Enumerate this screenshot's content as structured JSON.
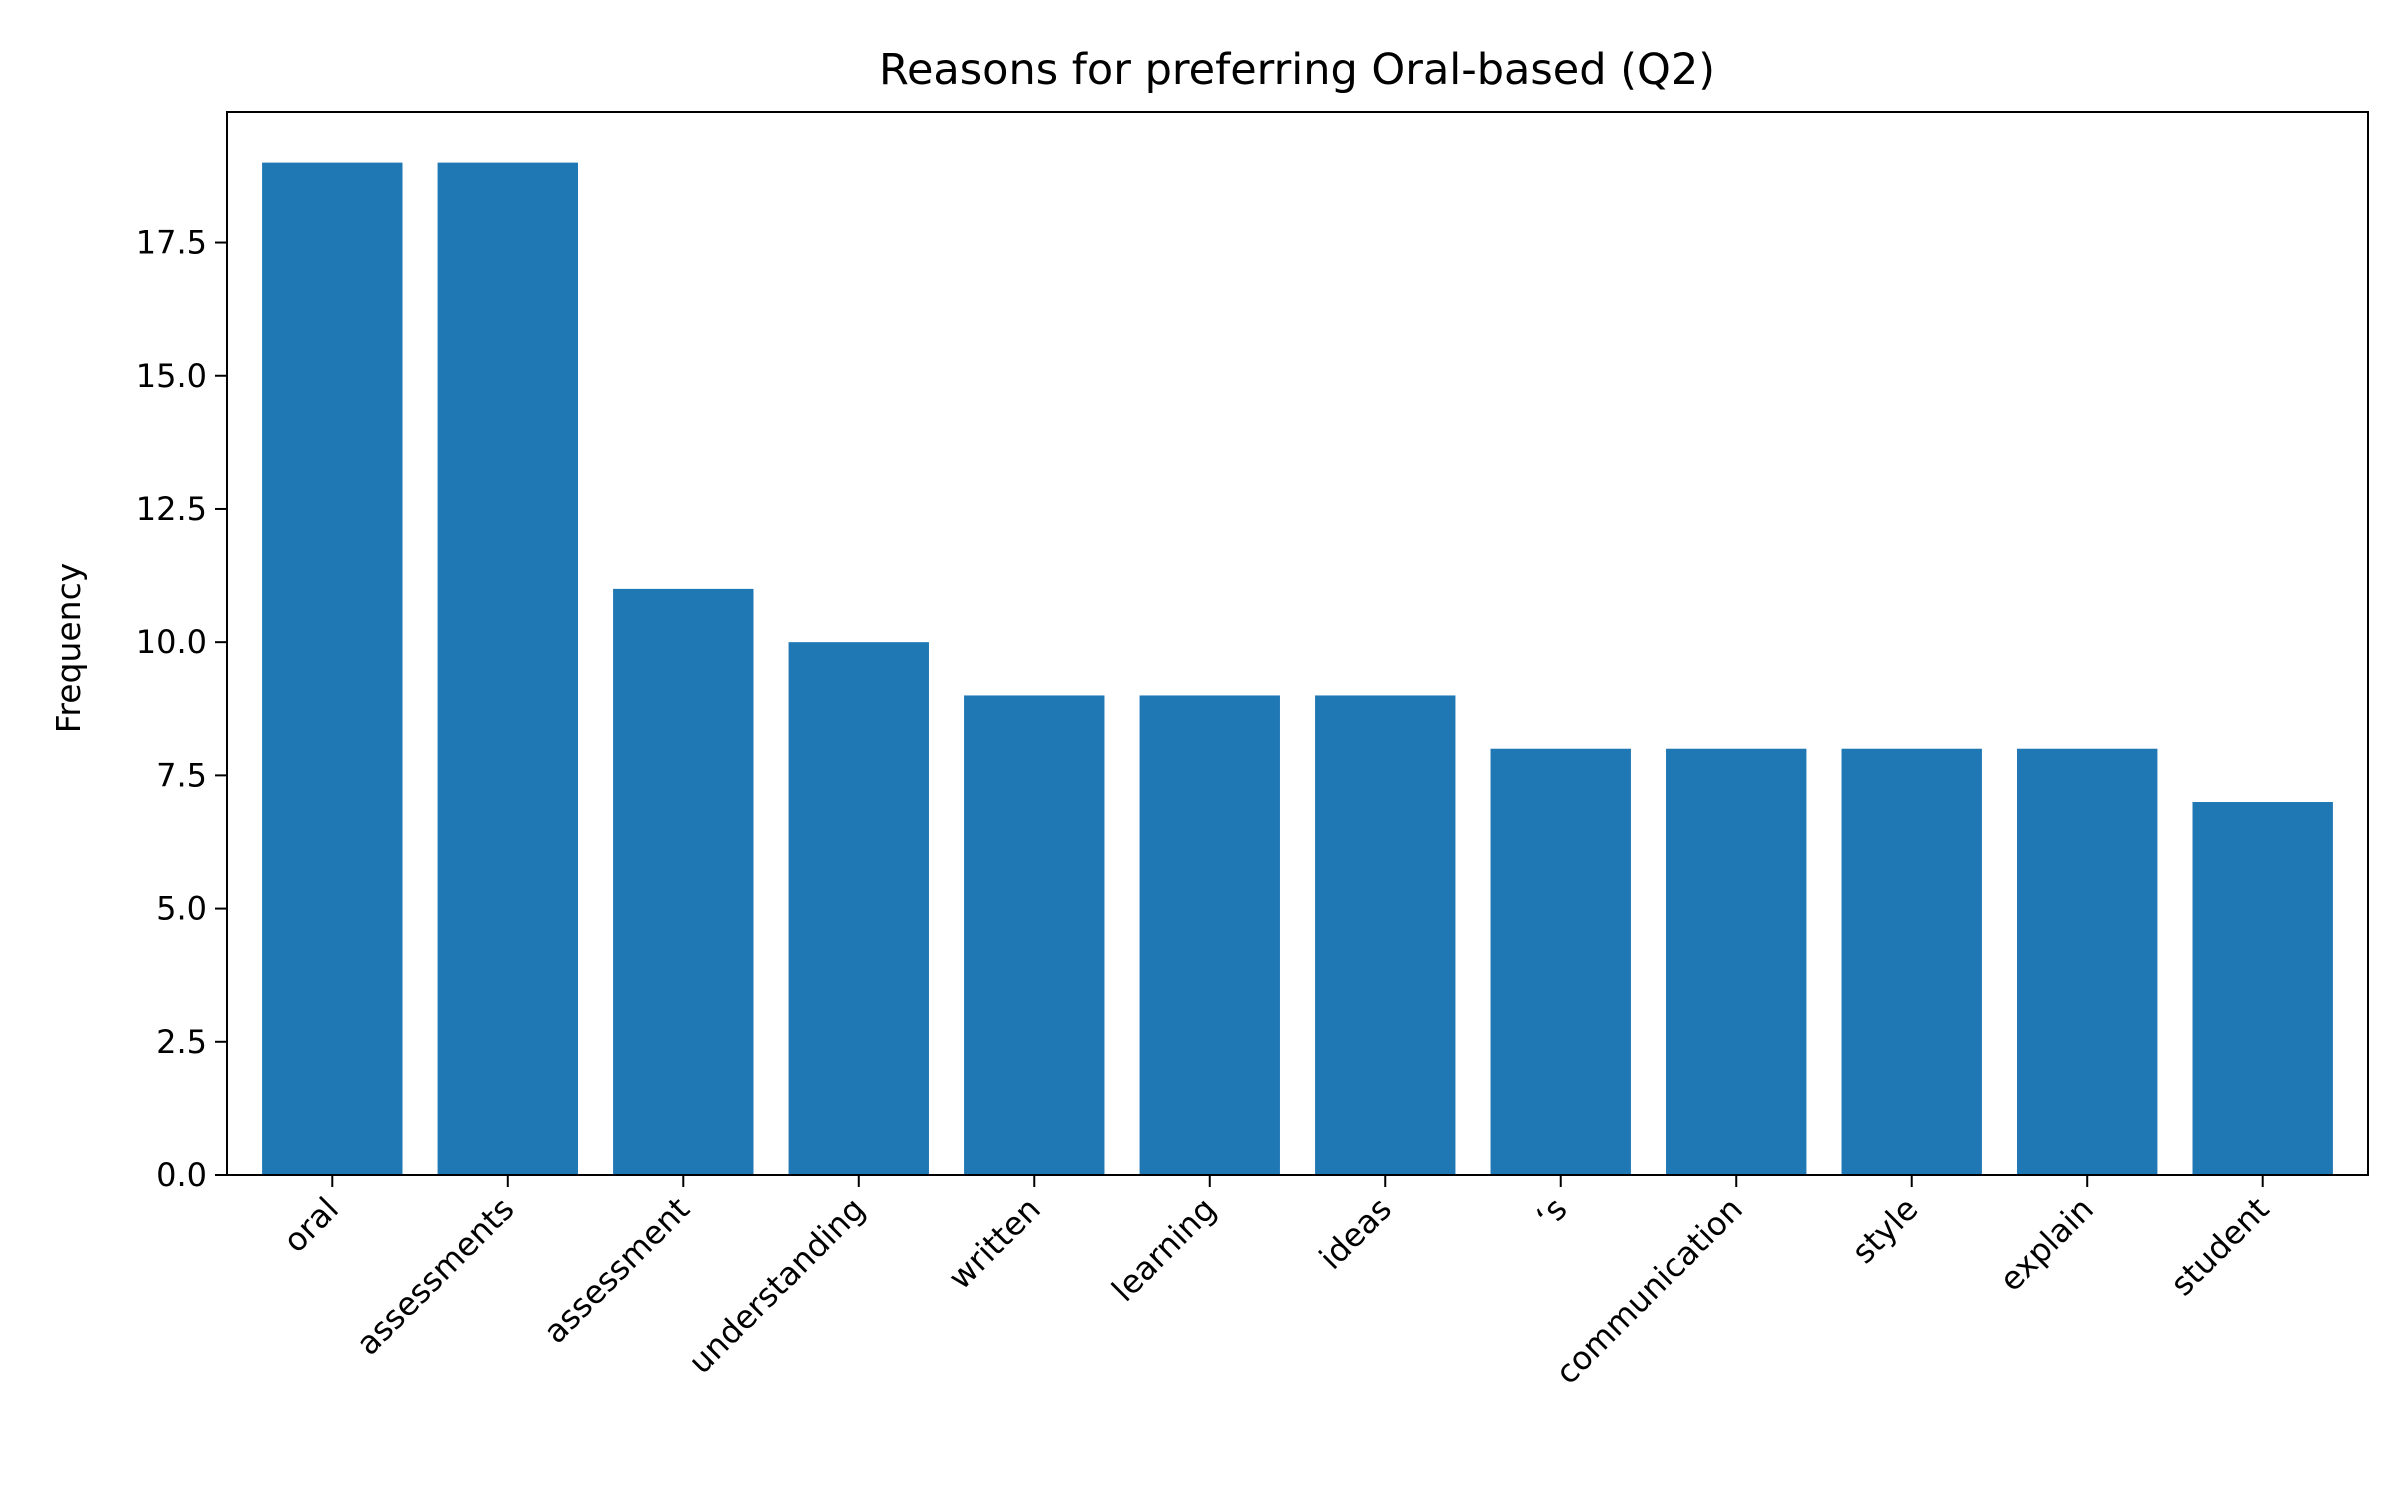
{
  "chart_data": {
    "type": "bar",
    "title": "Reasons for preferring Oral-based (Q2)",
    "xlabel": "",
    "ylabel": "Frequency",
    "categories": [
      "oral",
      "assessments",
      "assessment",
      "understanding",
      "written",
      "learning",
      "ideas",
      "ʻs",
      "communication",
      "style",
      "explain",
      "student"
    ],
    "values": [
      19,
      19,
      11,
      10,
      9,
      9,
      9,
      8,
      8,
      8,
      8,
      7
    ],
    "ylim": [
      0,
      19.95
    ],
    "yticks": [
      0,
      2.5,
      5,
      7.5,
      10,
      12.5,
      15,
      17.5
    ],
    "ytick_labels": [
      "0.0",
      "2.5",
      "5.0",
      "7.5",
      "10.0",
      "12.5",
      "15.0",
      "17.5"
    ],
    "bar_color": "#1f77b4",
    "grid": false,
    "legend": false
  }
}
